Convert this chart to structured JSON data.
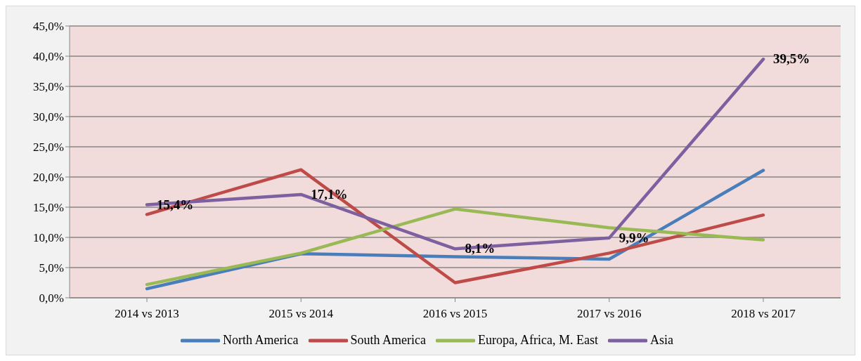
{
  "chart_data": {
    "type": "line",
    "categories": [
      "2014 vs 2013",
      "2015 vs 2014",
      "2016 vs 2015",
      "2017  vs 2016",
      "2018  vs 2017"
    ],
    "series": [
      {
        "name": "North America",
        "color": "#4a7ebb",
        "values": [
          1.5,
          7.3,
          6.8,
          6.4,
          21.1
        ]
      },
      {
        "name": "South America",
        "color": "#be4b48",
        "values": [
          13.8,
          21.2,
          2.5,
          7.4,
          13.7
        ]
      },
      {
        "name": "Europa, Africa, M. East",
        "color": "#98b954",
        "values": [
          2.2,
          7.4,
          14.7,
          11.6,
          9.6
        ]
      },
      {
        "name": "Asia",
        "color": "#7d60a0",
        "values": [
          15.4,
          17.1,
          8.1,
          9.9,
          39.5
        ],
        "value_labels": [
          "15,4%",
          "17,1%",
          "8,1%",
          "9,9%",
          "39,5%"
        ]
      }
    ],
    "ylim": [
      0,
      45
    ],
    "yticks": [
      {
        "value": 0,
        "label": "0,0%"
      },
      {
        "value": 5,
        "label": "5,0%"
      },
      {
        "value": 10,
        "label": "10,0%"
      },
      {
        "value": 15,
        "label": "15,0%"
      },
      {
        "value": 20,
        "label": "20,0%"
      },
      {
        "value": 25,
        "label": "25,0%"
      },
      {
        "value": 30,
        "label": "30,0%"
      },
      {
        "value": 35,
        "label": "35,0%"
      },
      {
        "value": 40,
        "label": "40,0%"
      },
      {
        "value": 45,
        "label": "45,0%"
      }
    ],
    "grid": "y",
    "legend": "bottom",
    "marker": "none",
    "line_style": "solid"
  }
}
